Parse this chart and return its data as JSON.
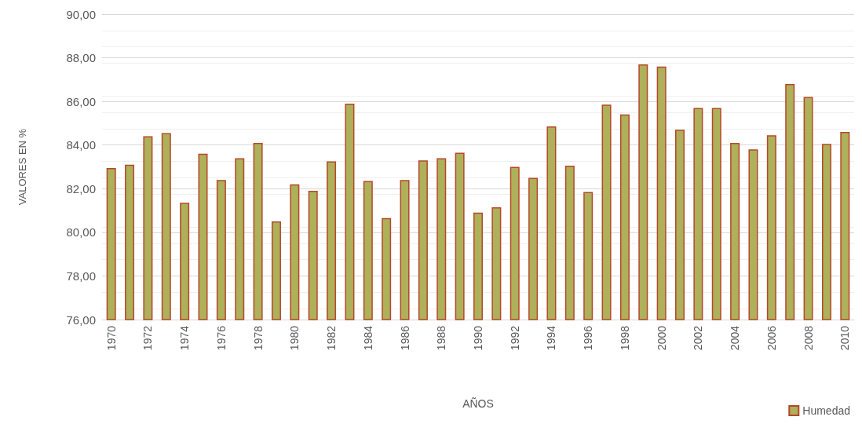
{
  "chart_data": {
    "type": "bar",
    "xlabel": "AÑOS",
    "ylabel": "VALORES EN %",
    "categories": [
      "1970",
      null,
      "1972",
      null,
      "1974",
      null,
      "1976",
      null,
      "1978",
      null,
      "1980",
      null,
      "1982",
      null,
      "1984",
      null,
      "1986",
      null,
      "1988",
      null,
      "1990",
      null,
      "1992",
      null,
      "1994",
      null,
      "1996",
      null,
      "1998",
      null,
      "2000",
      null,
      "2002",
      null,
      "2004",
      null,
      "2006",
      null,
      "2008",
      null,
      "2010"
    ],
    "series": [
      {
        "name": "Humedad",
        "color": "#aeb05a",
        "values": [
          82.95,
          83.1,
          84.4,
          84.55,
          81.35,
          83.6,
          82.4,
          83.4,
          84.1,
          80.5,
          82.2,
          81.9,
          83.25,
          85.9,
          82.35,
          80.65,
          82.4,
          83.3,
          83.4,
          83.65,
          80.9,
          81.15,
          83.0,
          82.5,
          84.85,
          83.05,
          81.85,
          85.85,
          85.4,
          87.7,
          87.6,
          84.7,
          85.7,
          85.7,
          84.1,
          83.8,
          84.45,
          86.8,
          86.2,
          84.05,
          84.6
        ]
      }
    ],
    "ylim": [
      76,
      90
    ],
    "yticks": [
      {
        "value": 76,
        "label": "76,00"
      },
      {
        "value": 78,
        "label": "78,00"
      },
      {
        "value": 80,
        "label": "80,00"
      },
      {
        "value": 82,
        "label": "82,00"
      },
      {
        "value": 84,
        "label": "84,00"
      },
      {
        "value": 86,
        "label": "86,00"
      },
      {
        "value": 88,
        "label": "88,00"
      },
      {
        "value": 90,
        "label": "90,00"
      }
    ],
    "grid": true,
    "legend": "bottom right"
  }
}
